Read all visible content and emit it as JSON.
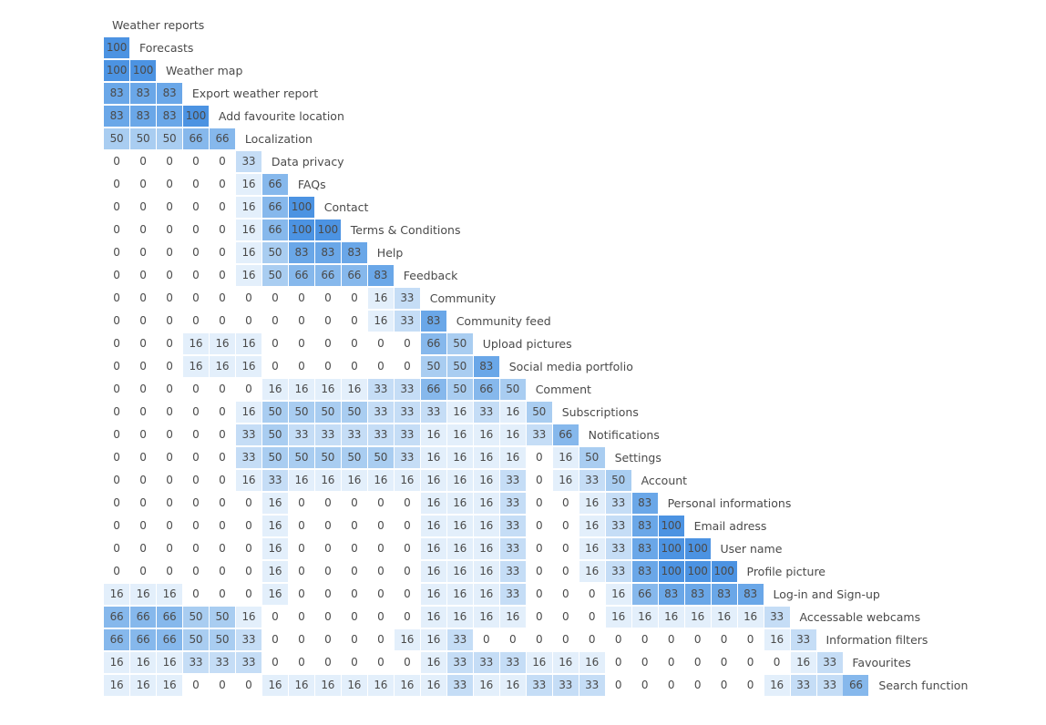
{
  "chart_data": {
    "type": "heatmap",
    "title": "Weather reports",
    "row_labels": [
      "Forecasts",
      "Weather map",
      "Export weather report",
      "Add favourite location",
      "Localization",
      "Data privacy",
      "FAQs",
      "Contact",
      "Terms & Conditions",
      "Help",
      "Feedback",
      "Community",
      "Community feed",
      "Upload pictures",
      "Social media portfolio",
      "Comment",
      "Subscriptions",
      "Notifications",
      "Settings",
      "Account",
      "Personal informations",
      "Email adress",
      "User name",
      "Profile picture",
      "Log-in and Sign-up",
      "Accessable webcams",
      "Information filters",
      "Favourites",
      "Search function"
    ],
    "rows": [
      [
        100
      ],
      [
        100,
        100
      ],
      [
        83,
        83,
        83
      ],
      [
        83,
        83,
        83,
        100
      ],
      [
        50,
        50,
        50,
        66,
        66
      ],
      [
        0,
        0,
        0,
        0,
        0,
        33
      ],
      [
        0,
        0,
        0,
        0,
        0,
        16,
        66
      ],
      [
        0,
        0,
        0,
        0,
        0,
        16,
        66,
        100
      ],
      [
        0,
        0,
        0,
        0,
        0,
        16,
        66,
        100,
        100
      ],
      [
        0,
        0,
        0,
        0,
        0,
        16,
        50,
        83,
        83,
        83
      ],
      [
        0,
        0,
        0,
        0,
        0,
        16,
        50,
        66,
        66,
        66,
        83
      ],
      [
        0,
        0,
        0,
        0,
        0,
        0,
        0,
        0,
        0,
        0,
        16,
        33
      ],
      [
        0,
        0,
        0,
        0,
        0,
        0,
        0,
        0,
        0,
        0,
        16,
        33,
        83
      ],
      [
        0,
        0,
        0,
        16,
        16,
        16,
        0,
        0,
        0,
        0,
        0,
        0,
        66,
        50
      ],
      [
        0,
        0,
        0,
        16,
        16,
        16,
        0,
        0,
        0,
        0,
        0,
        0,
        50,
        50,
        83
      ],
      [
        0,
        0,
        0,
        0,
        0,
        0,
        16,
        16,
        16,
        16,
        33,
        33,
        66,
        50,
        66,
        50
      ],
      [
        0,
        0,
        0,
        0,
        0,
        16,
        50,
        50,
        50,
        50,
        33,
        33,
        33,
        16,
        33,
        16,
        50
      ],
      [
        0,
        0,
        0,
        0,
        0,
        33,
        50,
        33,
        33,
        33,
        33,
        33,
        16,
        16,
        16,
        16,
        33,
        66
      ],
      [
        0,
        0,
        0,
        0,
        0,
        33,
        50,
        50,
        50,
        50,
        50,
        33,
        16,
        16,
        16,
        16,
        0,
        16,
        50
      ],
      [
        0,
        0,
        0,
        0,
        0,
        16,
        33,
        16,
        16,
        16,
        16,
        16,
        16,
        16,
        16,
        33,
        0,
        16,
        33,
        50
      ],
      [
        0,
        0,
        0,
        0,
        0,
        0,
        16,
        0,
        0,
        0,
        0,
        0,
        16,
        16,
        16,
        33,
        0,
        0,
        16,
        33,
        83
      ],
      [
        0,
        0,
        0,
        0,
        0,
        0,
        16,
        0,
        0,
        0,
        0,
        0,
        16,
        16,
        16,
        33,
        0,
        0,
        16,
        33,
        83,
        100
      ],
      [
        0,
        0,
        0,
        0,
        0,
        0,
        16,
        0,
        0,
        0,
        0,
        0,
        16,
        16,
        16,
        33,
        0,
        0,
        16,
        33,
        83,
        100,
        100
      ],
      [
        0,
        0,
        0,
        0,
        0,
        0,
        16,
        0,
        0,
        0,
        0,
        0,
        16,
        16,
        16,
        33,
        0,
        0,
        16,
        33,
        83,
        100,
        100,
        100
      ],
      [
        16,
        16,
        16,
        0,
        0,
        0,
        16,
        0,
        0,
        0,
        0,
        0,
        16,
        16,
        16,
        33,
        0,
        0,
        0,
        16,
        66,
        83,
        83,
        83,
        83
      ],
      [
        66,
        66,
        66,
        50,
        50,
        16,
        0,
        0,
        0,
        0,
        0,
        0,
        16,
        16,
        16,
        16,
        0,
        0,
        0,
        16,
        16,
        16,
        16,
        16,
        16,
        33
      ],
      [
        66,
        66,
        66,
        50,
        50,
        33,
        0,
        0,
        0,
        0,
        0,
        16,
        16,
        33,
        0,
        0,
        0,
        0,
        0,
        0,
        0,
        0,
        0,
        0,
        0,
        16,
        33
      ],
      [
        16,
        16,
        16,
        33,
        33,
        33,
        0,
        0,
        0,
        0,
        0,
        0,
        16,
        33,
        33,
        33,
        16,
        16,
        16,
        0,
        0,
        0,
        0,
        0,
        0,
        0,
        16,
        33
      ],
      [
        16,
        16,
        16,
        0,
        0,
        0,
        16,
        16,
        16,
        16,
        16,
        16,
        16,
        33,
        16,
        16,
        33,
        33,
        33,
        0,
        0,
        0,
        0,
        0,
        0,
        16,
        33,
        33,
        66
      ]
    ],
    "color_scale": {
      "0": "#ffffff",
      "16": "#e3effb",
      "33": "#c5ddf6",
      "50": "#a9cdf1",
      "66": "#86b8ec",
      "83": "#6aa7e8",
      "100": "#4c93e2"
    },
    "value_range": [
      0,
      100
    ]
  }
}
